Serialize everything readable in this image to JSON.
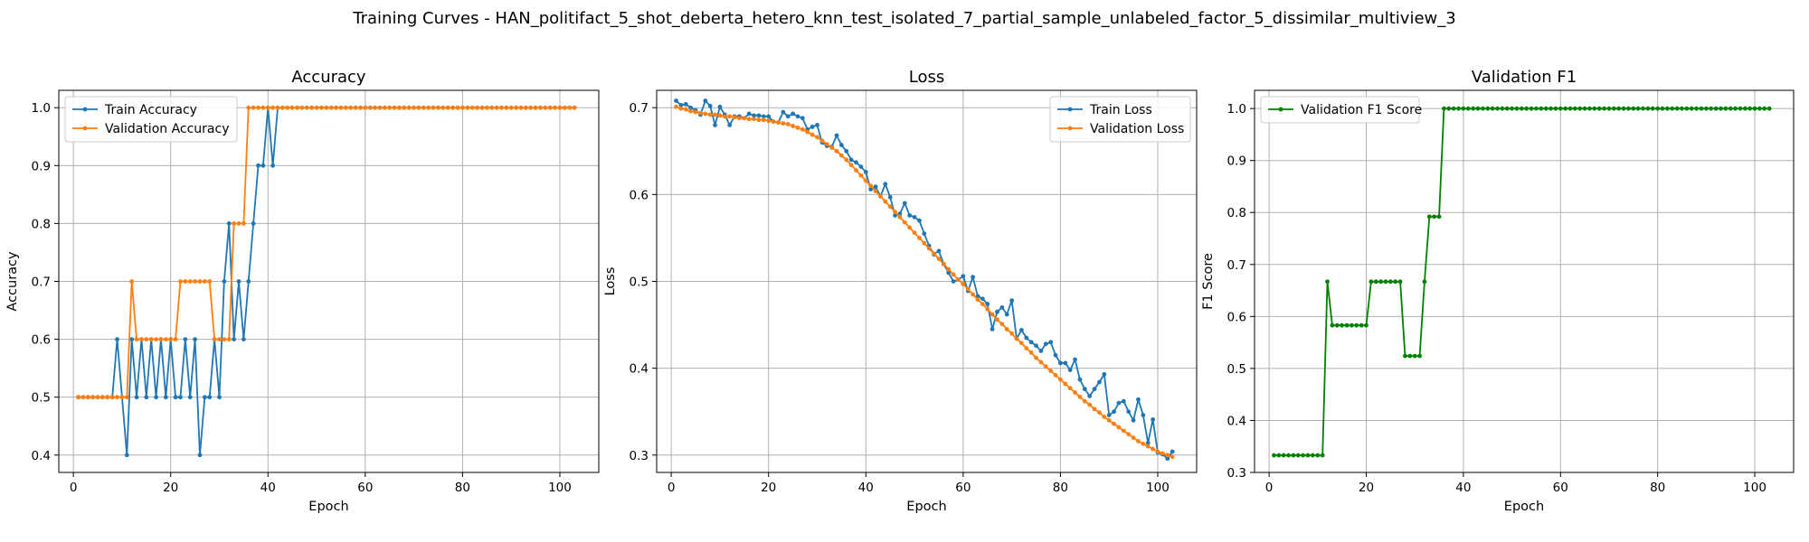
{
  "figure": {
    "title": "Training Curves - HAN_politifact_5_shot_deberta_hetero_knn_test_isolated_7_partial_sample_unlabeled_factor_5_dissimilar_multiview_3"
  },
  "colors": {
    "blue": "#1f77b4",
    "orange": "#ff7f0e",
    "green": "#008000",
    "grid": "#b0b0b0"
  },
  "chart_data": [
    {
      "type": "line",
      "title": "Accuracy",
      "xlabel": "Epoch",
      "ylabel": "Accuracy",
      "xlim": [
        -3,
        108
      ],
      "ylim": [
        0.37,
        1.03
      ],
      "xticks": [
        0,
        20,
        40,
        60,
        80,
        100
      ],
      "yticks": [
        0.4,
        0.5,
        0.6,
        0.7,
        0.8,
        0.9,
        1.0
      ],
      "grid": true,
      "legend": "upper left",
      "series": [
        {
          "name": "Train Accuracy",
          "color": "blue",
          "x_start": 1,
          "y": [
            0.5,
            0.5,
            0.5,
            0.5,
            0.5,
            0.5,
            0.5,
            0.5,
            0.6,
            0.5,
            0.4,
            0.6,
            0.5,
            0.6,
            0.5,
            0.6,
            0.5,
            0.6,
            0.5,
            0.6,
            0.5,
            0.5,
            0.6,
            0.5,
            0.6,
            0.4,
            0.5,
            0.5,
            0.6,
            0.5,
            0.7,
            0.8,
            0.6,
            0.7,
            0.6,
            0.7,
            0.8,
            0.9,
            0.9,
            1.0,
            0.9,
            1.0,
            1.0,
            1.0,
            1.0,
            1.0,
            1.0,
            1.0,
            1.0,
            1.0,
            1.0,
            1.0,
            1.0,
            1.0,
            1.0,
            1.0,
            1.0,
            1.0,
            1.0,
            1.0,
            1.0,
            1.0,
            1.0,
            1.0,
            1.0,
            1.0,
            1.0,
            1.0,
            1.0,
            1.0,
            1.0,
            1.0,
            1.0,
            1.0,
            1.0,
            1.0,
            1.0,
            1.0,
            1.0,
            1.0,
            1.0,
            1.0,
            1.0,
            1.0,
            1.0,
            1.0,
            1.0,
            1.0,
            1.0,
            1.0,
            1.0,
            1.0,
            1.0,
            1.0,
            1.0,
            1.0,
            1.0,
            1.0,
            1.0,
            1.0,
            1.0,
            1.0,
            1.0
          ]
        },
        {
          "name": "Validation Accuracy",
          "color": "orange",
          "x_start": 1,
          "y": [
            0.5,
            0.5,
            0.5,
            0.5,
            0.5,
            0.5,
            0.5,
            0.5,
            0.5,
            0.5,
            0.5,
            0.7,
            0.6,
            0.6,
            0.6,
            0.6,
            0.6,
            0.6,
            0.6,
            0.6,
            0.6,
            0.7,
            0.7,
            0.7,
            0.7,
            0.7,
            0.7,
            0.7,
            0.6,
            0.6,
            0.6,
            0.6,
            0.8,
            0.8,
            0.8,
            1.0,
            1.0,
            1.0,
            1.0,
            1.0,
            1.0,
            1.0,
            1.0,
            1.0,
            1.0,
            1.0,
            1.0,
            1.0,
            1.0,
            1.0,
            1.0,
            1.0,
            1.0,
            1.0,
            1.0,
            1.0,
            1.0,
            1.0,
            1.0,
            1.0,
            1.0,
            1.0,
            1.0,
            1.0,
            1.0,
            1.0,
            1.0,
            1.0,
            1.0,
            1.0,
            1.0,
            1.0,
            1.0,
            1.0,
            1.0,
            1.0,
            1.0,
            1.0,
            1.0,
            1.0,
            1.0,
            1.0,
            1.0,
            1.0,
            1.0,
            1.0,
            1.0,
            1.0,
            1.0,
            1.0,
            1.0,
            1.0,
            1.0,
            1.0,
            1.0,
            1.0,
            1.0,
            1.0,
            1.0,
            1.0,
            1.0,
            1.0,
            1.0
          ]
        }
      ]
    },
    {
      "type": "line",
      "title": "Loss",
      "xlabel": "Epoch",
      "ylabel": "Loss",
      "xlim": [
        -3,
        108
      ],
      "ylim": [
        0.28,
        0.72
      ],
      "xticks": [
        0,
        20,
        40,
        60,
        80,
        100
      ],
      "yticks": [
        0.3,
        0.4,
        0.5,
        0.6,
        0.7
      ],
      "grid": true,
      "legend": "upper right",
      "series": [
        {
          "name": "Train Loss",
          "color": "blue",
          "x_start": 1,
          "y": [
            0.708,
            0.703,
            0.704,
            0.7,
            0.697,
            0.692,
            0.708,
            0.702,
            0.68,
            0.701,
            0.692,
            0.68,
            0.69,
            0.69,
            0.688,
            0.693,
            0.691,
            0.691,
            0.69,
            0.69,
            0.684,
            0.683,
            0.695,
            0.69,
            0.693,
            0.69,
            0.688,
            0.675,
            0.678,
            0.68,
            0.66,
            0.656,
            0.655,
            0.668,
            0.657,
            0.65,
            0.64,
            0.637,
            0.632,
            0.626,
            0.606,
            0.609,
            0.598,
            0.612,
            0.597,
            0.576,
            0.578,
            0.59,
            0.576,
            0.574,
            0.57,
            0.555,
            0.541,
            0.531,
            0.535,
            0.52,
            0.51,
            0.5,
            0.502,
            0.506,
            0.489,
            0.505,
            0.483,
            0.48,
            0.474,
            0.445,
            0.465,
            0.47,
            0.462,
            0.478,
            0.434,
            0.444,
            0.435,
            0.43,
            0.426,
            0.42,
            0.428,
            0.43,
            0.415,
            0.406,
            0.406,
            0.398,
            0.41,
            0.387,
            0.376,
            0.368,
            0.376,
            0.384,
            0.393,
            0.346,
            0.35,
            0.36,
            0.362,
            0.35,
            0.34,
            0.364,
            0.346,
            0.314,
            0.341,
            0.303,
            0.301,
            0.296,
            0.304
          ]
        },
        {
          "name": "Validation Loss",
          "color": "orange",
          "x_start": 1,
          "y": [
            0.701,
            0.699,
            0.698,
            0.696,
            0.695,
            0.694,
            0.693,
            0.692,
            0.692,
            0.691,
            0.69,
            0.69,
            0.689,
            0.688,
            0.688,
            0.687,
            0.687,
            0.686,
            0.686,
            0.685,
            0.684,
            0.683,
            0.682,
            0.681,
            0.679,
            0.677,
            0.675,
            0.672,
            0.669,
            0.666,
            0.662,
            0.658,
            0.654,
            0.65,
            0.645,
            0.64,
            0.634,
            0.628,
            0.622,
            0.616,
            0.61,
            0.604,
            0.598,
            0.592,
            0.586,
            0.58,
            0.574,
            0.568,
            0.562,
            0.556,
            0.55,
            0.544,
            0.538,
            0.532,
            0.526,
            0.52,
            0.514,
            0.508,
            0.502,
            0.497,
            0.491,
            0.485,
            0.479,
            0.474,
            0.468,
            0.462,
            0.456,
            0.451,
            0.445,
            0.44,
            0.434,
            0.429,
            0.423,
            0.418,
            0.412,
            0.407,
            0.402,
            0.397,
            0.392,
            0.387,
            0.382,
            0.377,
            0.372,
            0.367,
            0.362,
            0.358,
            0.353,
            0.349,
            0.344,
            0.34,
            0.336,
            0.332,
            0.328,
            0.324,
            0.32,
            0.316,
            0.313,
            0.31,
            0.307,
            0.304,
            0.302,
            0.3,
            0.298
          ]
        }
      ]
    },
    {
      "type": "line",
      "title": "Validation F1",
      "xlabel": "Epoch",
      "ylabel": "F1 Score",
      "xlim": [
        -3,
        108
      ],
      "ylim": [
        0.3,
        1.035
      ],
      "xticks": [
        0,
        20,
        40,
        60,
        80,
        100
      ],
      "yticks": [
        0.3,
        0.4,
        0.5,
        0.6,
        0.7,
        0.8,
        0.9,
        1.0
      ],
      "grid": true,
      "legend": "upper left",
      "series": [
        {
          "name": "Validation F1 Score",
          "color": "green",
          "x_start": 1,
          "y": [
            0.333,
            0.333,
            0.333,
            0.333,
            0.333,
            0.333,
            0.333,
            0.333,
            0.333,
            0.333,
            0.333,
            0.667,
            0.583,
            0.583,
            0.583,
            0.583,
            0.583,
            0.583,
            0.583,
            0.583,
            0.667,
            0.667,
            0.667,
            0.667,
            0.667,
            0.667,
            0.667,
            0.524,
            0.524,
            0.524,
            0.524,
            0.667,
            0.792,
            0.792,
            0.792,
            1.0,
            1.0,
            1.0,
            1.0,
            1.0,
            1.0,
            1.0,
            1.0,
            1.0,
            1.0,
            1.0,
            1.0,
            1.0,
            1.0,
            1.0,
            1.0,
            1.0,
            1.0,
            1.0,
            1.0,
            1.0,
            1.0,
            1.0,
            1.0,
            1.0,
            1.0,
            1.0,
            1.0,
            1.0,
            1.0,
            1.0,
            1.0,
            1.0,
            1.0,
            1.0,
            1.0,
            1.0,
            1.0,
            1.0,
            1.0,
            1.0,
            1.0,
            1.0,
            1.0,
            1.0,
            1.0,
            1.0,
            1.0,
            1.0,
            1.0,
            1.0,
            1.0,
            1.0,
            1.0,
            1.0,
            1.0,
            1.0,
            1.0,
            1.0,
            1.0,
            1.0,
            1.0,
            1.0,
            1.0,
            1.0,
            1.0,
            1.0,
            1.0
          ]
        }
      ]
    }
  ]
}
